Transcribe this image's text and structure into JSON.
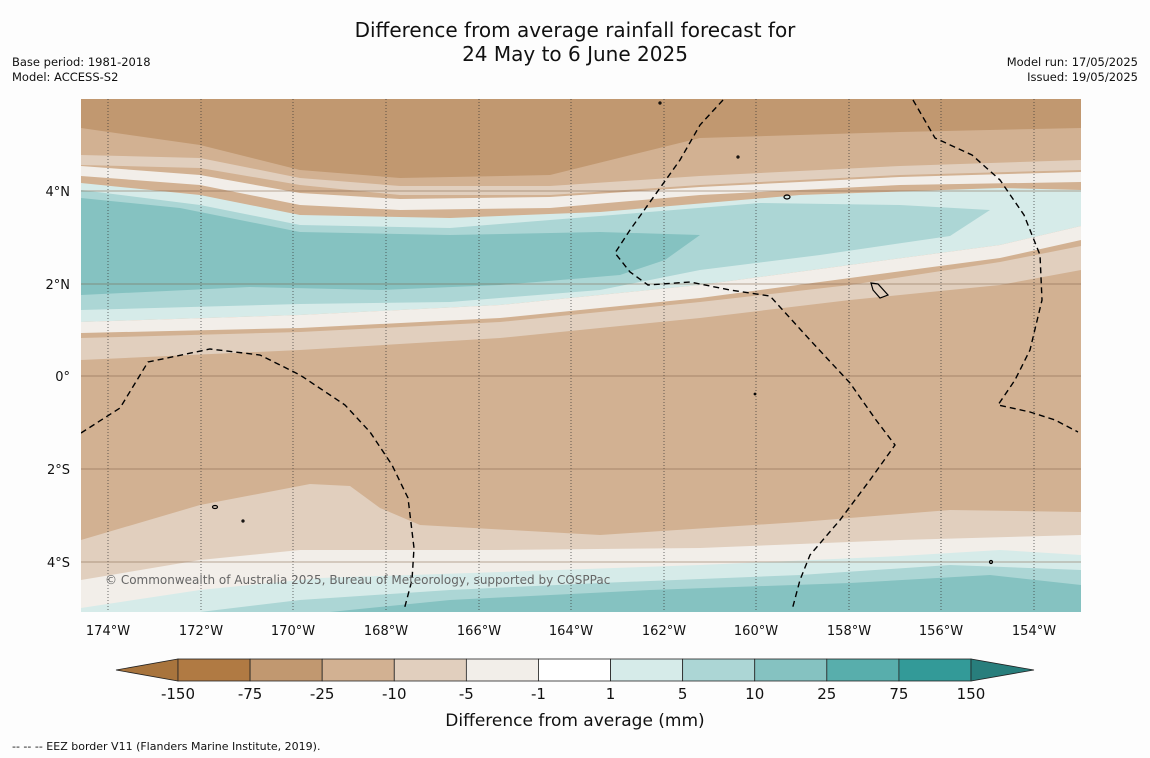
{
  "title": {
    "line1": "Difference from average rainfall forecast for",
    "line2": "24 May to 6 June 2025"
  },
  "meta_left": {
    "base_period": "Base period: 1981-2018",
    "model": "Model: ACCESS-S2"
  },
  "meta_right": {
    "model_run": "Model run: 17/05/2025",
    "issued": "Issued: 19/05/2025"
  },
  "map": {
    "lat_labels": [
      "4°N",
      "2°N",
      "0°",
      "2°S",
      "4°S"
    ],
    "lon_labels": [
      "174°W",
      "172°W",
      "170°W",
      "168°W",
      "166°W",
      "164°W",
      "162°W",
      "160°W",
      "158°W",
      "156°W",
      "154°W"
    ],
    "copyright": "© Commonwealth of Australia 2025, Bureau of Meteorology, supported by COSPPac"
  },
  "colorbar": {
    "title": "Difference from average (mm)",
    "tick_labels": [
      "-150",
      "-75",
      "-25",
      "-10",
      "-5",
      "-1",
      "1",
      "5",
      "10",
      "25",
      "75",
      "150"
    ],
    "colors": [
      "#a8743d",
      "#b07a43",
      "#c19870",
      "#d2b192",
      "#e1cfbe",
      "#f2eee9",
      "#ffffff",
      "#d6ebe9",
      "#acd6d5",
      "#85c2c1",
      "#58aeac",
      "#339a98",
      "#287e7c"
    ]
  },
  "footnote": "--  --  -- EEZ border V11 (Flanders Marine Institute, 2019)."
}
